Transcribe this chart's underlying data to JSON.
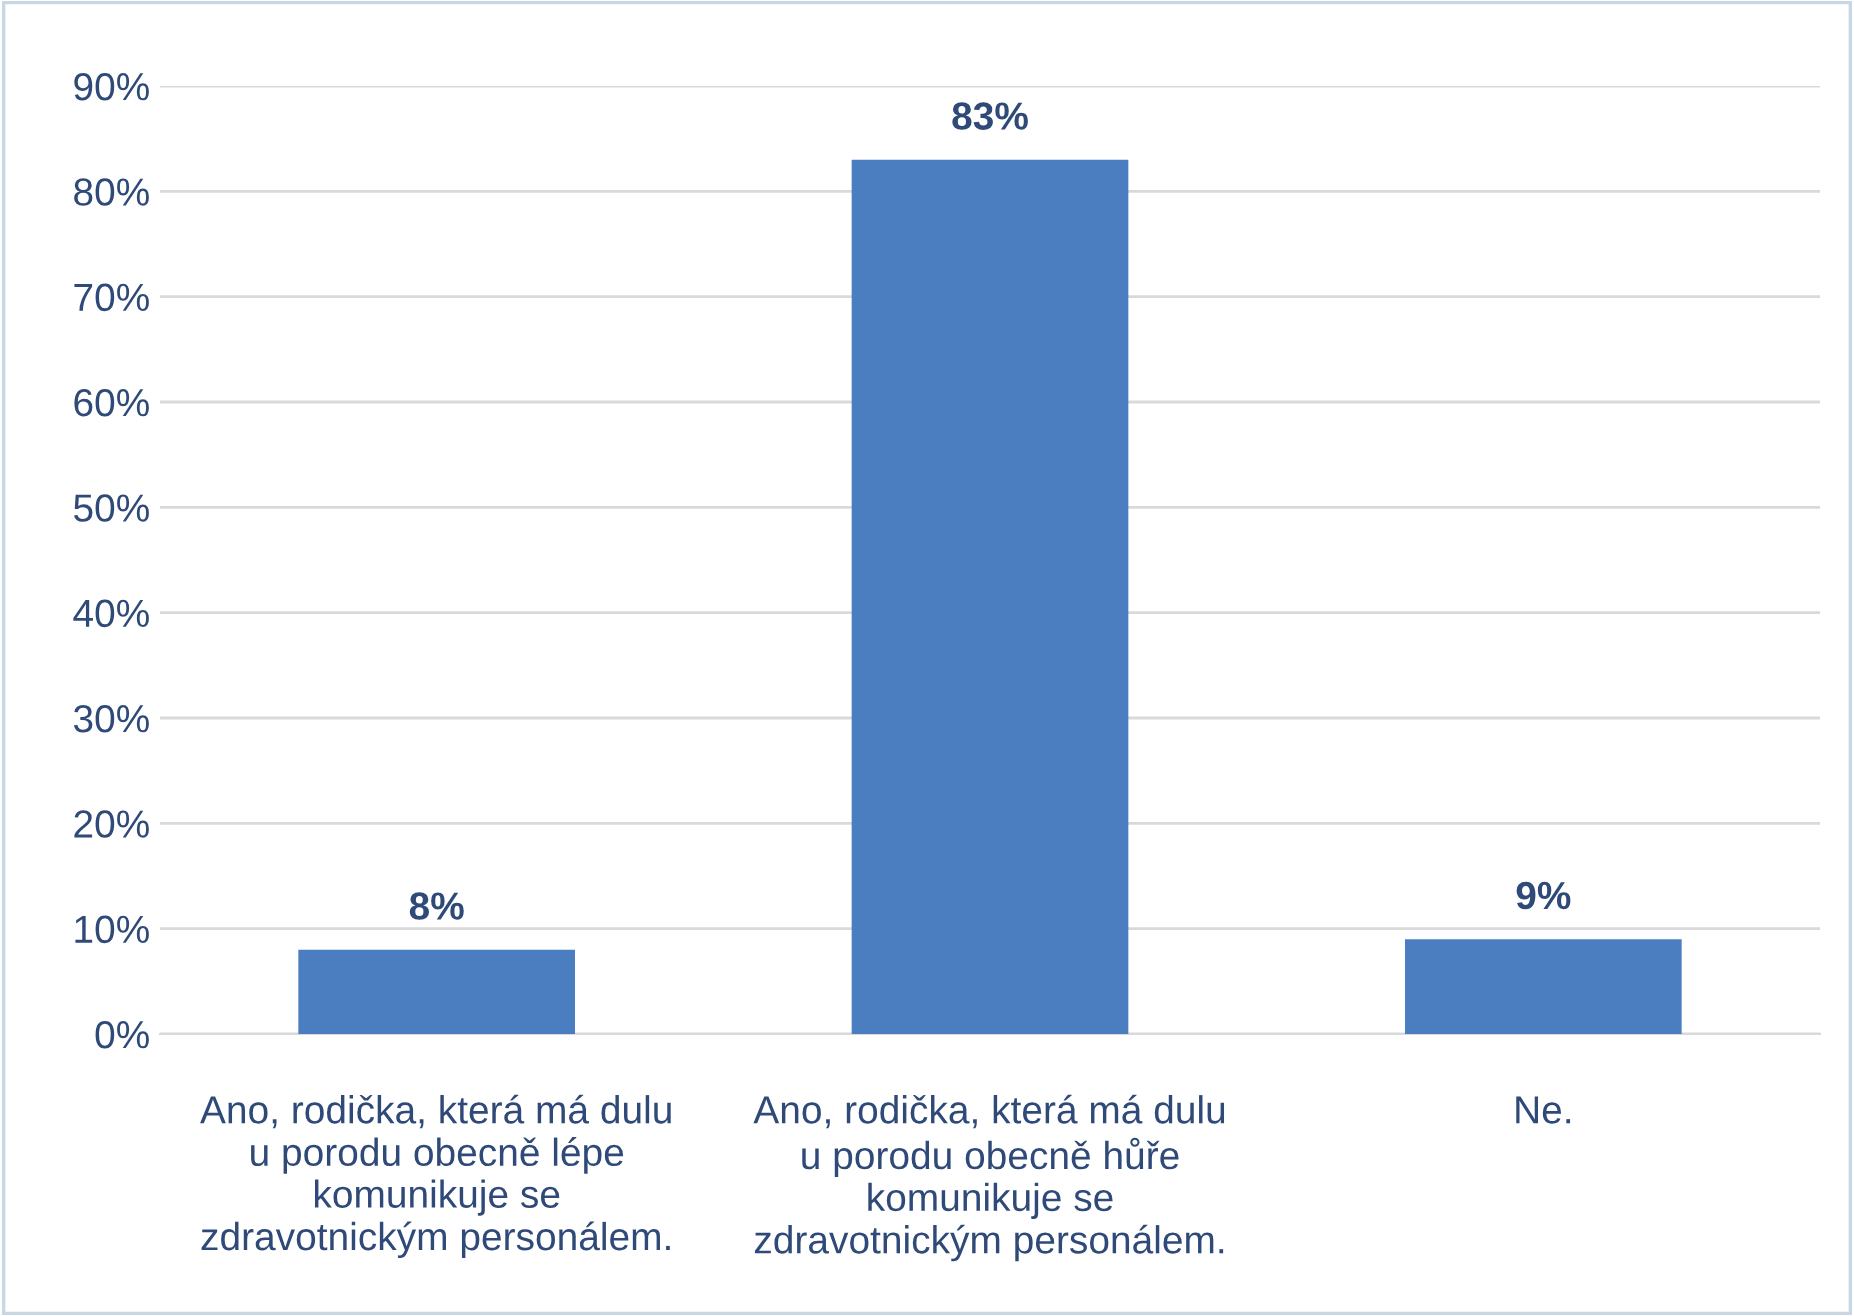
{
  "chart_data": {
    "type": "bar",
    "categories": [
      "Ano, rodička, která má dulu\nu porodu obecně lépe\nkomunikuje se\nzdravotnickým personálem.",
      "Ano, rodička, která má dulu\nu porodu obecně hůře\nkomunikuje se\nzdravotnickým personálem.",
      "Ne."
    ],
    "values": [
      8,
      83,
      9
    ],
    "value_labels": [
      "8%",
      "83%",
      "9%"
    ],
    "color": "#4a7ec0",
    "ylim": [
      0,
      90
    ],
    "yticks": [
      {
        "value": 0,
        "label": "0%"
      },
      {
        "value": 10,
        "label": "10%"
      },
      {
        "value": 20,
        "label": "20%"
      },
      {
        "value": 30,
        "label": "30%"
      },
      {
        "value": 40,
        "label": "40%"
      },
      {
        "value": 50,
        "label": "50%"
      },
      {
        "value": 60,
        "label": "60%"
      },
      {
        "value": 70,
        "label": "70%"
      },
      {
        "value": 80,
        "label": "80%"
      },
      {
        "value": 90,
        "label": "90%"
      }
    ],
    "grid": "y"
  }
}
